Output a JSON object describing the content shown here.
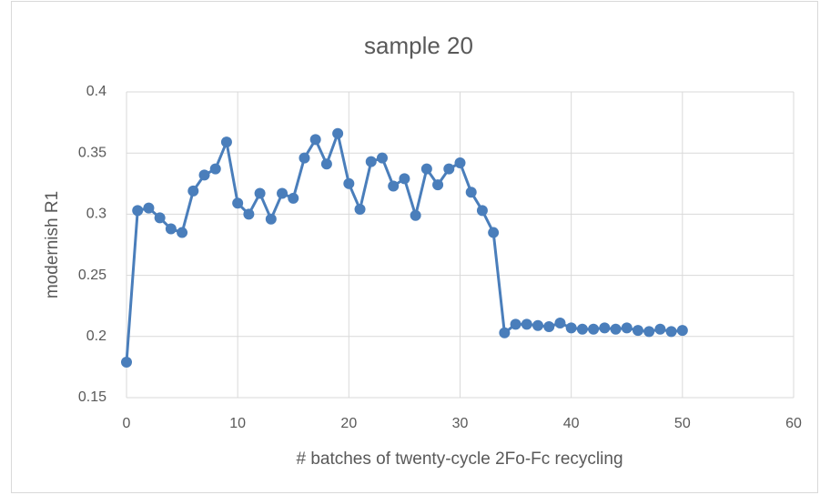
{
  "chart_data": {
    "type": "line",
    "title": "sample 20",
    "x_label": "# batches of twenty-cycle  2Fo-Fc recycling",
    "y_label": "modernish R1",
    "x": [
      0,
      1,
      2,
      3,
      4,
      5,
      6,
      7,
      8,
      9,
      10,
      11,
      12,
      13,
      14,
      15,
      16,
      17,
      18,
      19,
      20,
      21,
      22,
      23,
      24,
      25,
      26,
      27,
      28,
      29,
      30,
      31,
      32,
      33,
      34,
      35,
      36,
      37,
      38,
      39,
      40,
      41,
      42,
      43,
      44,
      45,
      46,
      47,
      48,
      49,
      50
    ],
    "series": [
      {
        "name": "modernish R1",
        "color": "#4a7ebb",
        "values": [
          0.179,
          0.303,
          0.305,
          0.297,
          0.288,
          0.285,
          0.319,
          0.332,
          0.337,
          0.359,
          0.309,
          0.3,
          0.317,
          0.296,
          0.317,
          0.313,
          0.346,
          0.361,
          0.341,
          0.366,
          0.325,
          0.304,
          0.343,
          0.346,
          0.323,
          0.329,
          0.299,
          0.337,
          0.324,
          0.337,
          0.342,
          0.318,
          0.303,
          0.285,
          0.203,
          0.21,
          0.21,
          0.209,
          0.208,
          0.211,
          0.207,
          0.206,
          0.206,
          0.207,
          0.206,
          0.207,
          0.205,
          0.204,
          0.206,
          0.204,
          0.205
        ]
      }
    ],
    "xlim": [
      0,
      60
    ],
    "xticks": [
      0,
      10,
      20,
      30,
      40,
      50,
      60
    ],
    "ylim": [
      0.15,
      0.4
    ],
    "yticks": [
      0.15,
      0.2,
      0.25,
      0.3,
      0.35,
      0.4
    ],
    "grid": true
  }
}
